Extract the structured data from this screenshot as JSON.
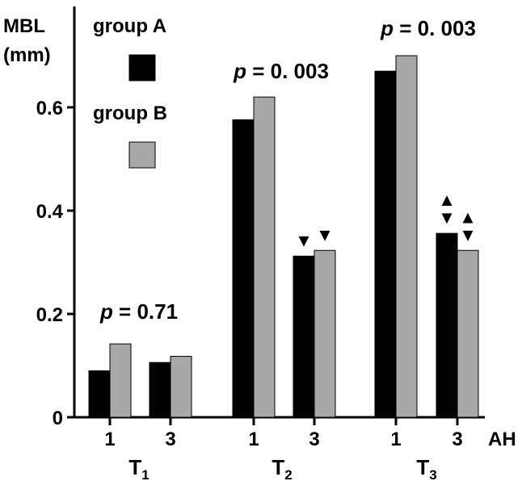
{
  "chart_data": {
    "type": "bar",
    "ylabel_line1": "MBL",
    "ylabel_line2": "(mm)",
    "xlabel": "AH",
    "ylim": [
      0,
      0.75
    ],
    "yticks": [
      "0",
      "0.2",
      "0.4",
      "0.6"
    ],
    "ytick_values": [
      0,
      0.2,
      0.4,
      0.6
    ],
    "grid": false,
    "legend_position": "top-left",
    "series": [
      {
        "name": "group A",
        "color": "#000000"
      },
      {
        "name": "group B",
        "color": "#a8a8a8"
      }
    ],
    "groups": [
      {
        "label": "T",
        "sub": "1",
        "p_prefix": "p",
        "p_value": " = 0.71",
        "pairs": [
          {
            "tick": "1",
            "values": [
              0.09,
              0.142
            ],
            "markers": [
              "",
              ""
            ]
          },
          {
            "tick": "3",
            "values": [
              0.106,
              0.118
            ],
            "markers": [
              "",
              ""
            ]
          }
        ]
      },
      {
        "label": "T",
        "sub": "2",
        "p_prefix": "p",
        "p_value": " = 0. 003",
        "pairs": [
          {
            "tick": "1",
            "values": [
              0.576,
              0.62
            ],
            "markers": [
              "",
              ""
            ]
          },
          {
            "tick": "3",
            "values": [
              0.312,
              0.323
            ],
            "markers": [
              "▼",
              "▼"
            ]
          }
        ]
      },
      {
        "label": "T",
        "sub": "3",
        "p_prefix": "p",
        "p_value": " = 0. 003",
        "pairs": [
          {
            "tick": "1",
            "values": [
              0.67,
              0.7
            ],
            "markers": [
              "",
              ""
            ]
          },
          {
            "tick": "3",
            "values": [
              0.356,
              0.323
            ],
            "markers": [
              "▲▼",
              "▲▼"
            ]
          }
        ]
      }
    ]
  }
}
